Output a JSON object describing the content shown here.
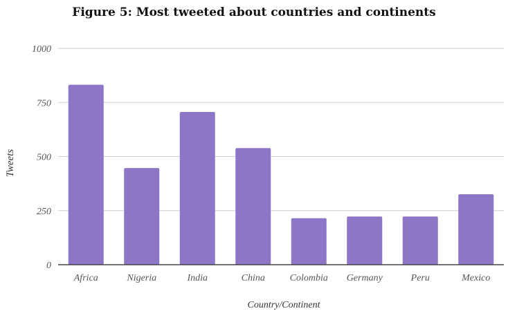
{
  "chart_data": {
    "type": "bar",
    "title": "Figure 5: Most tweeted about countries and continents",
    "xlabel": "Country/Continent",
    "ylabel": "Tweets",
    "categories": [
      "Africa",
      "Nigeria",
      "India",
      "China",
      "Colombia",
      "Germany",
      "Peru",
      "Mexico"
    ],
    "values": [
      832,
      447,
      706,
      539,
      215,
      223,
      223,
      326
    ],
    "ylim": [
      0,
      1000
    ],
    "yticks": [
      "0",
      "250",
      "500",
      "750",
      "1000"
    ],
    "grid": true,
    "bar_color": "#8e76c6"
  }
}
